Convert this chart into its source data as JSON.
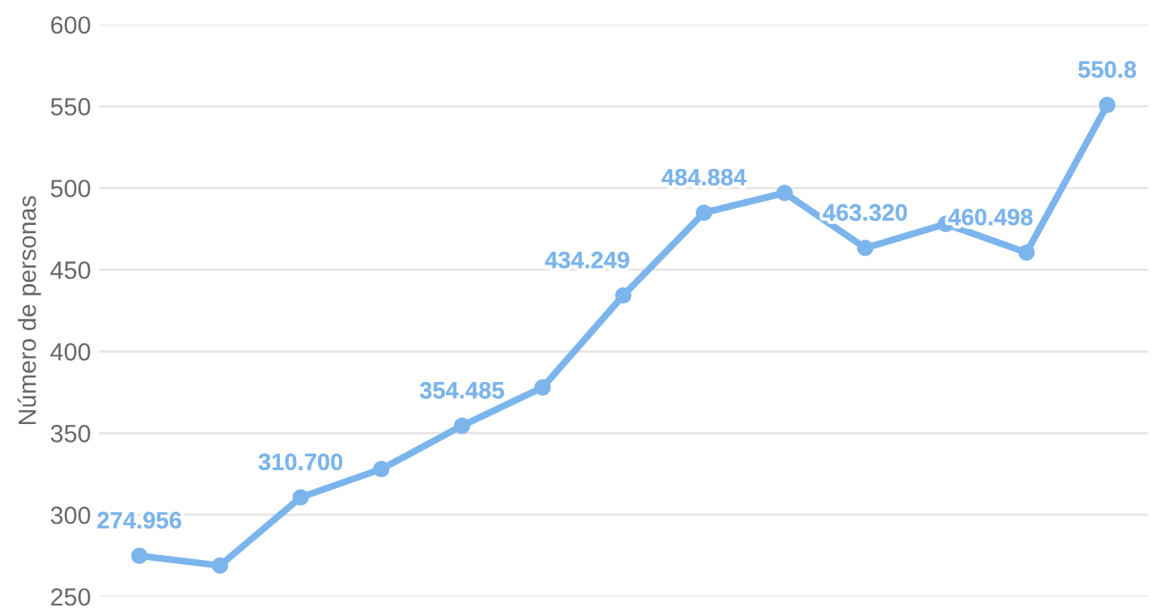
{
  "chart_data": {
    "type": "line",
    "ylabel": "Número de personas",
    "categories": [
      null,
      null,
      null,
      null,
      null,
      null,
      null,
      null,
      null,
      null,
      null,
      null,
      null
    ],
    "series": [
      {
        "color": "#7cb5ec",
        "values": [
          274.956,
          269,
          310.7,
          328,
          354.485,
          378,
          434.249,
          484.884,
          497,
          463.32,
          478,
          460.498,
          550.8
        ],
        "value_labels": [
          "274.956",
          null,
          "310.700",
          null,
          "354.485",
          null,
          "434.249",
          "484.884",
          null,
          "463.320",
          null,
          "460.498",
          "550.8"
        ]
      }
    ],
    "ylim": [
      250,
      600
    ],
    "yticks": [
      250,
      300,
      350,
      400,
      450,
      500,
      550,
      600
    ],
    "grid": "y",
    "marker": "circle",
    "line_style": "solid"
  }
}
